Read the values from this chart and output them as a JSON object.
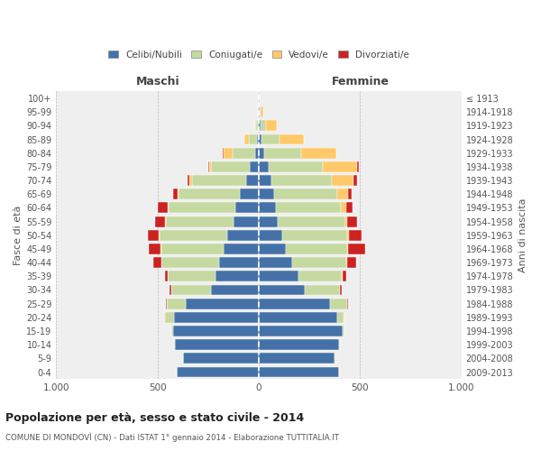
{
  "age_groups": [
    "100+",
    "95-99",
    "90-94",
    "85-89",
    "80-84",
    "75-79",
    "70-74",
    "65-69",
    "60-64",
    "55-59",
    "50-54",
    "45-49",
    "40-44",
    "35-39",
    "30-34",
    "25-29",
    "20-24",
    "15-19",
    "10-14",
    "5-9",
    "0-4"
  ],
  "birth_years": [
    "≤ 1913",
    "1914-1918",
    "1919-1923",
    "1924-1928",
    "1929-1933",
    "1934-1938",
    "1939-1943",
    "1944-1948",
    "1949-1953",
    "1954-1958",
    "1959-1963",
    "1964-1968",
    "1969-1973",
    "1974-1978",
    "1979-1983",
    "1984-1988",
    "1989-1993",
    "1994-1998",
    "1999-2003",
    "2004-2008",
    "2009-2013"
  ],
  "colors": {
    "celibi": "#4472a8",
    "coniugati": "#c5d9a0",
    "vedovi": "#ffc96a",
    "divorziati": "#cc2222"
  },
  "male": {
    "celibi": [
      2,
      3,
      5,
      10,
      20,
      45,
      65,
      95,
      115,
      125,
      155,
      175,
      195,
      215,
      235,
      360,
      420,
      425,
      415,
      375,
      405
    ],
    "coniugati": [
      0,
      1,
      8,
      40,
      110,
      190,
      265,
      300,
      330,
      335,
      335,
      305,
      285,
      235,
      195,
      95,
      45,
      8,
      4,
      1,
      0
    ],
    "vedovi": [
      0,
      1,
      6,
      20,
      45,
      12,
      12,
      8,
      6,
      4,
      4,
      4,
      2,
      1,
      1,
      1,
      1,
      0,
      0,
      0,
      0
    ],
    "divorziati": [
      0,
      0,
      0,
      0,
      4,
      4,
      12,
      22,
      50,
      50,
      55,
      58,
      38,
      12,
      8,
      2,
      1,
      0,
      0,
      0,
      0
    ]
  },
  "female": {
    "celibi": [
      2,
      4,
      8,
      15,
      25,
      50,
      60,
      75,
      85,
      95,
      115,
      135,
      165,
      195,
      225,
      350,
      385,
      415,
      395,
      375,
      395
    ],
    "coniugati": [
      0,
      4,
      25,
      85,
      185,
      265,
      300,
      310,
      320,
      330,
      320,
      300,
      265,
      215,
      175,
      85,
      35,
      8,
      4,
      1,
      0
    ],
    "vedovi": [
      2,
      12,
      55,
      120,
      170,
      170,
      105,
      55,
      25,
      12,
      8,
      6,
      4,
      2,
      1,
      1,
      1,
      0,
      0,
      0,
      0
    ],
    "divorziati": [
      0,
      0,
      0,
      2,
      4,
      8,
      18,
      18,
      32,
      46,
      65,
      85,
      46,
      18,
      8,
      4,
      2,
      0,
      0,
      0,
      0
    ]
  },
  "title": "Popolazione per età, sesso e stato civile - 2014",
  "subtitle": "COMUNE DI MONDOVÌ (CN) - Dati ISTAT 1° gennaio 2014 - Elaborazione TUTTITALIA.IT",
  "xlabel_left": "Maschi",
  "xlabel_right": "Femmine",
  "ylabel": "Fasce di età",
  "ylabel_right": "Anni di nascita",
  "xlim": 1000,
  "legend_labels": [
    "Celibi/Nubili",
    "Coniugati/e",
    "Vedovi/e",
    "Divorziati/e"
  ],
  "background_color": "#ffffff",
  "grid_color": "#cccccc"
}
